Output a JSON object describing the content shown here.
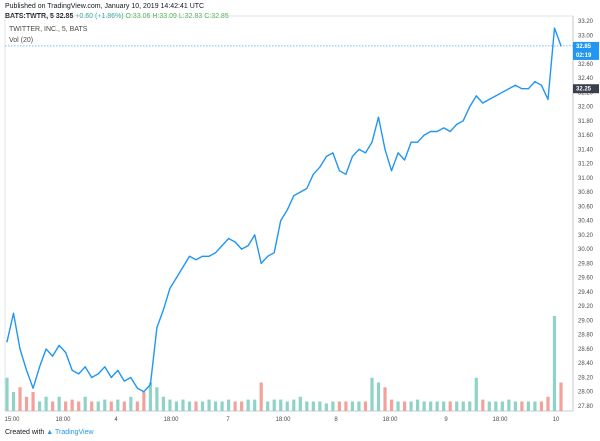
{
  "header": {
    "published": "Published on TradingView.com, January 10, 2019 14:42:41 UTC",
    "symbol": "BATS:TWTR, 5",
    "price": "32.85",
    "change": "+0.60 (+1.86%)",
    "o": "O:33.06",
    "h": "H:33.09",
    "l": "L:32.83",
    "c": "C:32.85"
  },
  "legend": {
    "title": "TWITTER, INC., 5, BATS",
    "vol": "Vol (20)"
  },
  "footer": {
    "created": "Created with",
    "brand": "TradingView"
  },
  "colors": {
    "line": "#2196f3",
    "vol_up": "#8fd3c8",
    "vol_down": "#f3a29b",
    "current_tag": "#2196f3",
    "prev_tag": "#3a3f4b"
  },
  "price_tags": {
    "current": "32.85",
    "countdown": "02:19",
    "prev": "32.25"
  },
  "chart_data": {
    "type": "line",
    "title": "TWITTER, INC., 5, BATS",
    "ylim": [
      27.73,
      33.27
    ],
    "y_ticks": [
      "33.20",
      "33.00",
      "32.80",
      "32.60",
      "32.40",
      "32.20",
      "32.00",
      "31.80",
      "31.60",
      "31.40",
      "31.20",
      "31.00",
      "30.80",
      "30.60",
      "30.40",
      "30.20",
      "30.00",
      "29.80",
      "29.60",
      "29.40",
      "29.20",
      "29.00",
      "28.80",
      "28.60",
      "28.40",
      "28.20",
      "28.00",
      "27.80"
    ],
    "x_ticks": [
      "15:00",
      "18:00",
      "4",
      "18:00",
      "7",
      "18:00",
      "8",
      "18:00",
      "9",
      "18:00",
      "10"
    ],
    "series": [
      {
        "values": [
          28.7,
          29.1,
          28.6,
          28.3,
          28.05,
          28.35,
          28.6,
          28.5,
          28.65,
          28.55,
          28.3,
          28.25,
          28.35,
          28.2,
          28.25,
          28.35,
          28.2,
          28.3,
          28.15,
          28.2,
          28.05,
          28.0,
          28.1,
          28.9,
          29.15,
          29.45,
          29.6,
          29.75,
          29.9,
          29.85,
          29.9,
          29.9,
          29.95,
          30.05,
          30.15,
          30.1,
          30.0,
          30.05,
          30.2,
          29.8,
          29.9,
          29.95,
          30.4,
          30.55,
          30.75,
          30.8,
          30.85,
          31.05,
          31.15,
          31.3,
          31.35,
          31.1,
          31.05,
          31.3,
          31.4,
          31.35,
          31.5,
          31.85,
          31.4,
          31.1,
          31.35,
          31.25,
          31.5,
          31.5,
          31.6,
          31.65,
          31.65,
          31.7,
          31.65,
          31.75,
          31.8,
          32.0,
          32.15,
          32.05,
          32.1,
          32.15,
          32.2,
          32.25,
          32.3,
          32.25,
          32.25,
          32.35,
          32.3,
          32.1,
          33.1,
          32.85
        ],
        "volume": [
          0.35,
          0.2,
          0.25,
          0.15,
          0.2,
          0.1,
          0.15,
          0.1,
          0.15,
          0.1,
          0.12,
          0.1,
          0.15,
          0.1,
          0.1,
          0.12,
          0.1,
          0.12,
          0.1,
          0.15,
          0.1,
          0.2,
          0.3,
          0.25,
          0.15,
          0.12,
          0.1,
          0.12,
          0.1,
          0.1,
          0.1,
          0.12,
          0.1,
          0.1,
          0.12,
          0.1,
          0.1,
          0.12,
          0.12,
          0.3,
          0.1,
          0.12,
          0.12,
          0.1,
          0.12,
          0.15,
          0.1,
          0.1,
          0.1,
          0.08,
          0.1,
          0.1,
          0.1,
          0.1,
          0.1,
          0.1,
          0.35,
          0.3,
          0.25,
          0.12,
          0.1,
          0.1,
          0.1,
          0.12,
          0.1,
          0.1,
          0.1,
          0.1,
          0.1,
          0.1,
          0.1,
          0.1,
          0.35,
          0.12,
          0.1,
          0.1,
          0.1,
          0.12,
          0.1,
          0.1,
          0.1,
          0.1,
          0.1,
          0.15,
          1.0,
          0.3
        ]
      }
    ]
  }
}
